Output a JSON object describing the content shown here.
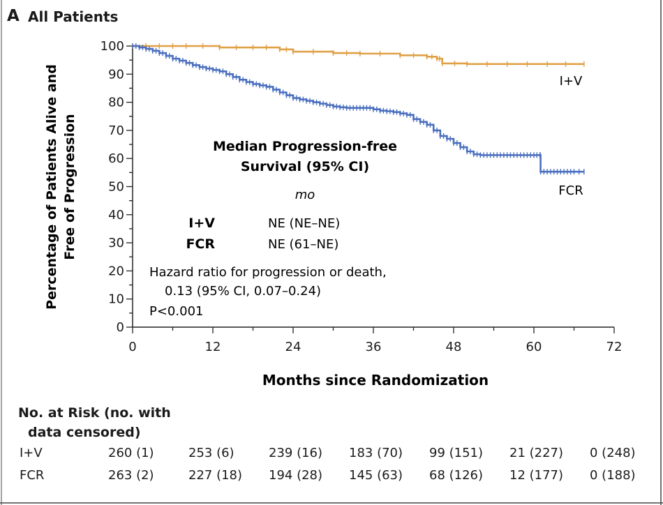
{
  "panel": {
    "letter": "A",
    "title": "All Patients"
  },
  "chart_data": {
    "type": "line",
    "subtype": "kaplan-meier",
    "xlabel": "Months since Randomization",
    "ylabel": "Percentage of Patients Alive and Free of Progression",
    "ylabel_lines": [
      "Percentage of Patients Alive and",
      "Free of Progression"
    ],
    "xlim": [
      0,
      72
    ],
    "ylim": [
      0,
      100
    ],
    "x_ticks": [
      0,
      12,
      24,
      36,
      48,
      60,
      72
    ],
    "y_ticks": [
      0,
      10,
      20,
      30,
      40,
      50,
      60,
      70,
      80,
      90,
      100
    ],
    "series": [
      {
        "name": "I+V",
        "color": "#e0a046",
        "x": [
          0,
          4,
          8,
          13,
          18,
          22,
          24,
          30,
          34,
          40,
          44,
          45.5,
          46.3,
          50,
          56,
          62,
          67.5
        ],
        "y": [
          100,
          100,
          100,
          99.5,
          99.5,
          98.8,
          98,
          97.5,
          97.3,
          96.7,
          96.2,
          95.5,
          93.8,
          93.6,
          93.6,
          93.6,
          93.6
        ]
      },
      {
        "name": "FCR",
        "color": "#4a6fbf",
        "x": [
          0,
          1,
          2,
          3,
          4,
          5,
          6,
          7,
          8,
          9,
          10,
          11,
          12,
          13,
          14,
          15,
          16,
          17,
          18,
          19,
          20,
          21,
          22,
          23,
          24,
          25,
          26,
          27,
          28,
          29,
          30,
          31,
          32,
          33,
          34,
          35,
          36,
          37,
          38,
          39,
          40,
          41,
          42,
          43,
          44,
          45,
          46,
          47,
          48,
          49,
          50,
          51,
          52,
          53,
          54,
          55,
          56,
          57,
          58,
          59,
          60,
          60.9,
          61,
          62,
          63,
          64,
          65,
          66,
          67.5
        ],
        "y": [
          100,
          99.5,
          99,
          98.3,
          97.5,
          96.5,
          95.5,
          94.8,
          94,
          93.2,
          92.5,
          92,
          91.5,
          91,
          90,
          89,
          88,
          87.2,
          86.5,
          86,
          85.5,
          84.5,
          83.5,
          82.5,
          81.5,
          81,
          80.5,
          80,
          79.5,
          79,
          78.5,
          78.2,
          78,
          78,
          78,
          78,
          77.5,
          77,
          76.8,
          76.5,
          76,
          75.5,
          74,
          73,
          72,
          70,
          68,
          67,
          65.5,
          64,
          62.5,
          61.5,
          61.2,
          61.2,
          61.2,
          61.2,
          61.2,
          61.2,
          61.2,
          61.2,
          61.2,
          61.2,
          55.3,
          55.3,
          55.3,
          55.3,
          55.3,
          55.3,
          55.3
        ]
      }
    ],
    "series_labels": [
      {
        "name": "I+V",
        "text": "I+V"
      },
      {
        "name": "FCR",
        "text": "FCR"
      }
    ],
    "annotation": {
      "heading_line1": "Median Progression-free",
      "heading_line2": "Survival (95% CI)",
      "unit": "mo",
      "rows": [
        {
          "label": "I+V",
          "value": "NE (NE–NE)"
        },
        {
          "label": "FCR",
          "value": "NE (61–NE)"
        }
      ],
      "hr_line1": "Hazard ratio for progression or death,",
      "hr_line2": "0.13 (95% CI, 0.07–0.24)",
      "p_value": "P<0.001"
    }
  },
  "risk_table": {
    "heading_line1": "No. at Risk (no. with",
    "heading_line2": "data censored)",
    "rows": [
      {
        "label": "I+V",
        "values": [
          "260 (1)",
          "253 (6)",
          "239 (16)",
          "183 (70)",
          "99 (151)",
          "21 (227)",
          "0 (248)"
        ]
      },
      {
        "label": "FCR",
        "values": [
          "263 (2)",
          "227 (18)",
          "194 (28)",
          "145 (63)",
          "68 (126)",
          "12 (177)",
          "0 (188)"
        ]
      }
    ]
  }
}
